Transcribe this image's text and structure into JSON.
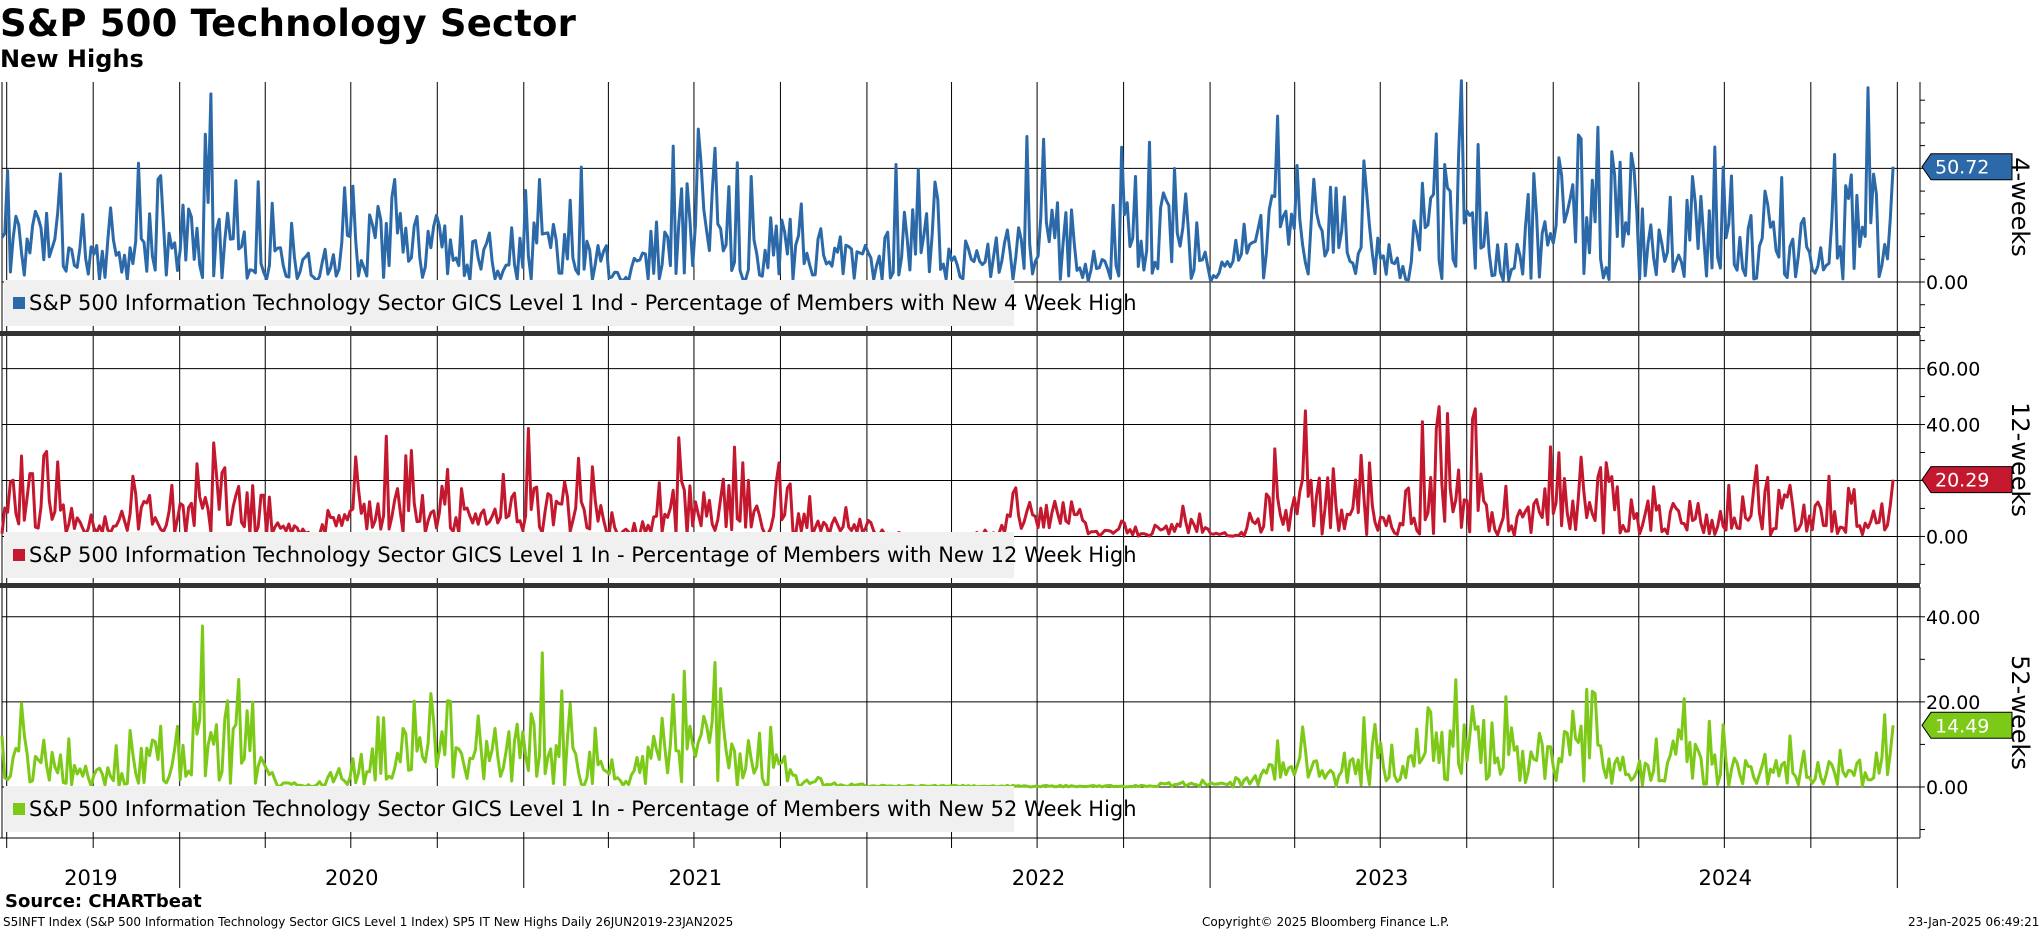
{
  "page": {
    "title": "S&P 500 Technology Sector",
    "subtitle": "New Highs"
  },
  "footer": {
    "source": "Source: CHARTbeat",
    "description": "S5INFT Index (S&P 500 Information Technology Sector GICS Level 1 Index) SP5 IT New Highs  Daily 26JUN2019-23JAN2025",
    "copyright": "Copyright© 2025 Bloomberg Finance L.P.",
    "timestamp": "23-Jan-2025 06:49:21"
  },
  "chart_data": {
    "type": "line",
    "x_range": [
      "2019-06-26",
      "2025-01-23"
    ],
    "x_axis": {
      "year_labels": [
        "2019",
        "2020",
        "2021",
        "2022",
        "2023",
        "2024"
      ]
    },
    "grid": true,
    "panels": [
      {
        "id": "4w",
        "panel_label": "4-weeks",
        "series_name": "S&P 500 Information Technology Sector GICS Level 1 Ind - Percentage of Members with New 4 Week High",
        "color": "#2b69a8",
        "last_value": 50.72,
        "last_value_label": "50.72",
        "ylim": [
          -22,
          88
        ],
        "y_ticks": [
          0
        ],
        "y_tick_labels": [
          "0.00"
        ],
        "y_extra_gridlines": [
          50
        ],
        "seed": 11,
        "base": [
          20,
          24,
          16,
          12,
          14,
          22,
          24,
          28,
          18,
          12,
          3,
          20,
          24,
          20,
          20,
          12,
          16,
          22,
          16,
          18,
          4,
          12,
          30,
          30,
          16,
          22,
          14,
          14,
          10,
          22,
          20,
          6,
          10,
          24,
          18,
          8,
          22,
          28,
          20,
          2,
          8,
          28,
          26,
          16,
          18,
          8,
          26,
          30,
          14,
          12,
          28,
          30,
          20,
          18,
          14,
          20,
          18,
          20,
          14,
          18,
          28,
          40
        ]
      },
      {
        "id": "12w",
        "panel_label": "12-weeks",
        "series_name": "S&P 500 Information Technology Sector GICS Level 1 In - Percentage of Members with New 12 Week High",
        "color": "#c4182f",
        "last_value": 20.29,
        "last_value_label": "20.29",
        "ylim": [
          -17,
          72
        ],
        "y_ticks": [
          0,
          20,
          40,
          60
        ],
        "y_tick_labels": [
          "0.00",
          "",
          "40.00",
          "60.00"
        ],
        "y_extra_gridlines": [],
        "seed": 23,
        "base": [
          14,
          12,
          8,
          5,
          6,
          14,
          12,
          18,
          10,
          3,
          0.5,
          8,
          14,
          12,
          12,
          6,
          8,
          14,
          8,
          10,
          1,
          5,
          16,
          14,
          8,
          10,
          5,
          4,
          2,
          0.5,
          0.5,
          0.5,
          1,
          12,
          10,
          1,
          2,
          0.5,
          8,
          0.5,
          1,
          12,
          16,
          8,
          10,
          3,
          16,
          22,
          8,
          6,
          14,
          10,
          8,
          8,
          10,
          8,
          6,
          10,
          8,
          8,
          5,
          14
        ]
      },
      {
        "id": "52w",
        "panel_label": "52-weeks",
        "series_name": "S&P 500 Information Technology Sector GICS Level 1 In - Percentage of Members with New 52 Week High",
        "color": "#7cc918",
        "last_value": 14.49,
        "last_value_label": "14.49",
        "ylim": [
          -12,
          47
        ],
        "y_ticks": [
          0,
          20,
          40
        ],
        "y_tick_labels": [
          "0.00",
          "20.00",
          "40.00"
        ],
        "y_extra_gridlines": [],
        "seed": 37,
        "base": [
          8,
          6,
          4,
          3,
          4,
          10,
          14,
          12,
          8,
          0.5,
          0.5,
          4,
          6,
          10,
          8,
          6,
          8,
          12,
          8,
          6,
          1,
          6,
          10,
          12,
          4,
          6,
          1,
          0.5,
          0.3,
          0.2,
          0.2,
          0.2,
          0.2,
          0.2,
          0.2,
          0.2,
          0.2,
          0.2,
          1,
          0.5,
          1,
          4,
          6,
          3,
          6,
          3,
          8,
          16,
          12,
          6,
          8,
          10,
          6,
          4,
          8,
          6,
          4,
          6,
          4,
          4,
          2,
          8
        ]
      }
    ]
  }
}
